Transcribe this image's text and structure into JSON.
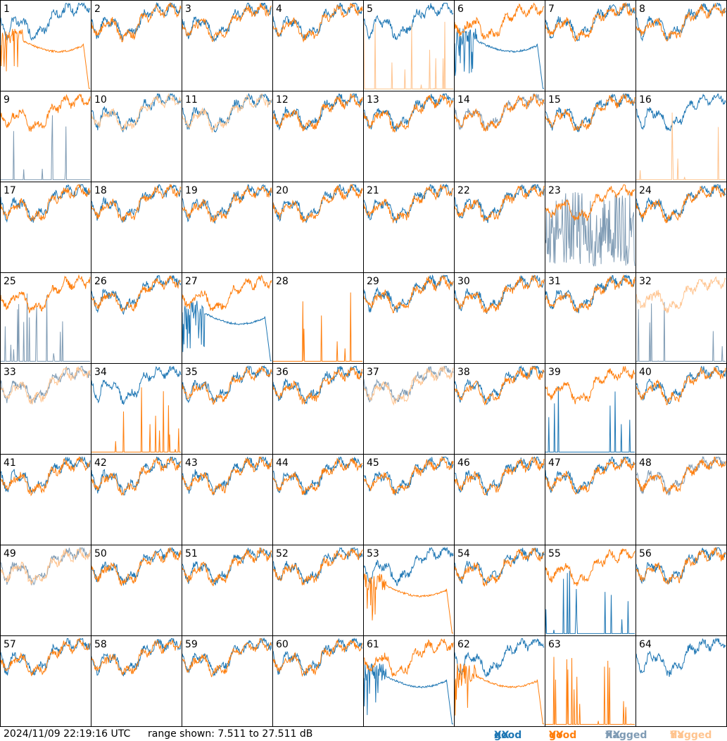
{
  "footer": {
    "timestamp": "2024/11/09 22:19:16 UTC",
    "range_text": "range shown: 7.511 to 27.511 dB"
  },
  "legend": {
    "good": "good",
    "flagged": "flagged",
    "xx": "XX",
    "yy": "YY"
  },
  "colors": {
    "good_xx": "#1f77b4",
    "good_yy": "#ff7f0e",
    "flagged_xx": "#7f9bb4",
    "flagged_yy": "#ffc48f"
  },
  "chart_data": {
    "type": "line",
    "layout": "8x8 small multiples",
    "ylim": [
      7.511,
      27.511
    ],
    "units": "dB",
    "panels": [
      {
        "label": "1",
        "xx": "good",
        "yy": "good",
        "xx_shape": "normal",
        "yy_shape": "dropout"
      },
      {
        "label": "2",
        "xx": "good",
        "yy": "good",
        "xx_shape": "normal",
        "yy_shape": "normal"
      },
      {
        "label": "3",
        "xx": "good",
        "yy": "good",
        "xx_shape": "normal",
        "yy_shape": "normal"
      },
      {
        "label": "4",
        "xx": "good",
        "yy": "good",
        "xx_shape": "normal",
        "yy_shape": "normal"
      },
      {
        "label": "5",
        "xx": "good",
        "yy": "flagged",
        "xx_shape": "normal",
        "yy_shape": "spikes"
      },
      {
        "label": "6",
        "xx": "good",
        "yy": "good",
        "xx_shape": "dropout",
        "yy_shape": "normal"
      },
      {
        "label": "7",
        "xx": "good",
        "yy": "good",
        "xx_shape": "normal",
        "yy_shape": "normal"
      },
      {
        "label": "8",
        "xx": "good",
        "yy": "good",
        "xx_shape": "normal",
        "yy_shape": "normal"
      },
      {
        "label": "9",
        "xx": "flagged",
        "yy": "good",
        "xx_shape": "spikes",
        "yy_shape": "normal"
      },
      {
        "label": "10",
        "xx": "good",
        "yy": "flagged",
        "xx_shape": "normal",
        "yy_shape": "normal"
      },
      {
        "label": "11",
        "xx": "good",
        "yy": "flagged",
        "xx_shape": "normal",
        "yy_shape": "normal"
      },
      {
        "label": "12",
        "xx": "good",
        "yy": "good",
        "xx_shape": "normal",
        "yy_shape": "normal"
      },
      {
        "label": "13",
        "xx": "good",
        "yy": "good",
        "xx_shape": "normal",
        "yy_shape": "normal"
      },
      {
        "label": "14",
        "xx": "flagged",
        "yy": "good",
        "xx_shape": "normal",
        "yy_shape": "normal"
      },
      {
        "label": "15",
        "xx": "good",
        "yy": "good",
        "xx_shape": "normal",
        "yy_shape": "normal"
      },
      {
        "label": "16",
        "xx": "good",
        "yy": "flagged",
        "xx_shape": "normal",
        "yy_shape": "spikes"
      },
      {
        "label": "17",
        "xx": "good",
        "yy": "good",
        "xx_shape": "normal",
        "yy_shape": "normal"
      },
      {
        "label": "18",
        "xx": "good",
        "yy": "good",
        "xx_shape": "normal",
        "yy_shape": "normal"
      },
      {
        "label": "19",
        "xx": "good",
        "yy": "good",
        "xx_shape": "normal",
        "yy_shape": "normal"
      },
      {
        "label": "20",
        "xx": "good",
        "yy": "good",
        "xx_shape": "normal",
        "yy_shape": "normal"
      },
      {
        "label": "21",
        "xx": "good",
        "yy": "good",
        "xx_shape": "normal",
        "yy_shape": "normal"
      },
      {
        "label": "22",
        "xx": "good",
        "yy": "good",
        "xx_shape": "normal",
        "yy_shape": "normal"
      },
      {
        "label": "23",
        "xx": "flagged",
        "yy": "good",
        "xx_shape": "noisy",
        "yy_shape": "normal"
      },
      {
        "label": "24",
        "xx": "good",
        "yy": "good",
        "xx_shape": "normal",
        "yy_shape": "normal"
      },
      {
        "label": "25",
        "xx": "flagged",
        "yy": "good",
        "xx_shape": "spikes",
        "yy_shape": "normal"
      },
      {
        "label": "26",
        "xx": "good",
        "yy": "good",
        "xx_shape": "normal",
        "yy_shape": "normal"
      },
      {
        "label": "27",
        "xx": "good",
        "yy": "good",
        "xx_shape": "dropout",
        "yy_shape": "normal"
      },
      {
        "label": "28",
        "xx": "none",
        "yy": "good",
        "xx_shape": "none",
        "yy_shape": "spikes"
      },
      {
        "label": "29",
        "xx": "good",
        "yy": "good",
        "xx_shape": "normal",
        "yy_shape": "normal"
      },
      {
        "label": "30",
        "xx": "good",
        "yy": "good",
        "xx_shape": "normal",
        "yy_shape": "normal"
      },
      {
        "label": "31",
        "xx": "good",
        "yy": "good",
        "xx_shape": "normal",
        "yy_shape": "normal"
      },
      {
        "label": "32",
        "xx": "flagged",
        "yy": "flagged",
        "xx_shape": "spikes",
        "yy_shape": "normal"
      },
      {
        "label": "33",
        "xx": "flagged",
        "yy": "flagged",
        "xx_shape": "normal",
        "yy_shape": "normal"
      },
      {
        "label": "34",
        "xx": "good",
        "yy": "good",
        "xx_shape": "normal",
        "yy_shape": "spikes"
      },
      {
        "label": "35",
        "xx": "good",
        "yy": "good",
        "xx_shape": "normal",
        "yy_shape": "normal"
      },
      {
        "label": "36",
        "xx": "good",
        "yy": "good",
        "xx_shape": "normal",
        "yy_shape": "normal"
      },
      {
        "label": "37",
        "xx": "flagged",
        "yy": "flagged",
        "xx_shape": "normal",
        "yy_shape": "normal"
      },
      {
        "label": "38",
        "xx": "good",
        "yy": "good",
        "xx_shape": "normal",
        "yy_shape": "normal"
      },
      {
        "label": "39",
        "xx": "good",
        "yy": "good",
        "xx_shape": "spikes",
        "yy_shape": "normal"
      },
      {
        "label": "40",
        "xx": "good",
        "yy": "good",
        "xx_shape": "normal",
        "yy_shape": "normal"
      },
      {
        "label": "41",
        "xx": "good",
        "yy": "good",
        "xx_shape": "normal",
        "yy_shape": "normal"
      },
      {
        "label": "42",
        "xx": "good",
        "yy": "good",
        "xx_shape": "normal",
        "yy_shape": "normal"
      },
      {
        "label": "43",
        "xx": "good",
        "yy": "good",
        "xx_shape": "normal",
        "yy_shape": "normal"
      },
      {
        "label": "44",
        "xx": "good",
        "yy": "good",
        "xx_shape": "normal",
        "yy_shape": "normal"
      },
      {
        "label": "45",
        "xx": "good",
        "yy": "good",
        "xx_shape": "normal",
        "yy_shape": "normal"
      },
      {
        "label": "46",
        "xx": "good",
        "yy": "good",
        "xx_shape": "normal",
        "yy_shape": "normal"
      },
      {
        "label": "47",
        "xx": "good",
        "yy": "good",
        "xx_shape": "normal",
        "yy_shape": "normal"
      },
      {
        "label": "48",
        "xx": "flagged",
        "yy": "good",
        "xx_shape": "normal",
        "yy_shape": "normal"
      },
      {
        "label": "49",
        "xx": "flagged",
        "yy": "flagged",
        "xx_shape": "normal",
        "yy_shape": "normal"
      },
      {
        "label": "50",
        "xx": "good",
        "yy": "good",
        "xx_shape": "normal",
        "yy_shape": "normal"
      },
      {
        "label": "51",
        "xx": "good",
        "yy": "good",
        "xx_shape": "normal",
        "yy_shape": "normal"
      },
      {
        "label": "52",
        "xx": "good",
        "yy": "good",
        "xx_shape": "normal",
        "yy_shape": "normal"
      },
      {
        "label": "53",
        "xx": "good",
        "yy": "good",
        "xx_shape": "normal",
        "yy_shape": "dropout"
      },
      {
        "label": "54",
        "xx": "good",
        "yy": "good",
        "xx_shape": "normal",
        "yy_shape": "normal"
      },
      {
        "label": "55",
        "xx": "good",
        "yy": "good",
        "xx_shape": "spikes",
        "yy_shape": "normal"
      },
      {
        "label": "56",
        "xx": "good",
        "yy": "good",
        "xx_shape": "normal",
        "yy_shape": "normal"
      },
      {
        "label": "57",
        "xx": "good",
        "yy": "good",
        "xx_shape": "normal",
        "yy_shape": "normal"
      },
      {
        "label": "58",
        "xx": "good",
        "yy": "good",
        "xx_shape": "normal",
        "yy_shape": "normal"
      },
      {
        "label": "59",
        "xx": "good",
        "yy": "good",
        "xx_shape": "normal",
        "yy_shape": "normal"
      },
      {
        "label": "60",
        "xx": "good",
        "yy": "good",
        "xx_shape": "normal",
        "yy_shape": "normal"
      },
      {
        "label": "61",
        "xx": "good",
        "yy": "good",
        "xx_shape": "dropout",
        "yy_shape": "normal"
      },
      {
        "label": "62",
        "xx": "good",
        "yy": "good",
        "xx_shape": "normal",
        "yy_shape": "dropout"
      },
      {
        "label": "63",
        "xx": "none",
        "yy": "good",
        "xx_shape": "none",
        "yy_shape": "spikes"
      },
      {
        "label": "64",
        "xx": "good",
        "yy": "none",
        "xx_shape": "normal",
        "yy_shape": "none"
      }
    ]
  }
}
